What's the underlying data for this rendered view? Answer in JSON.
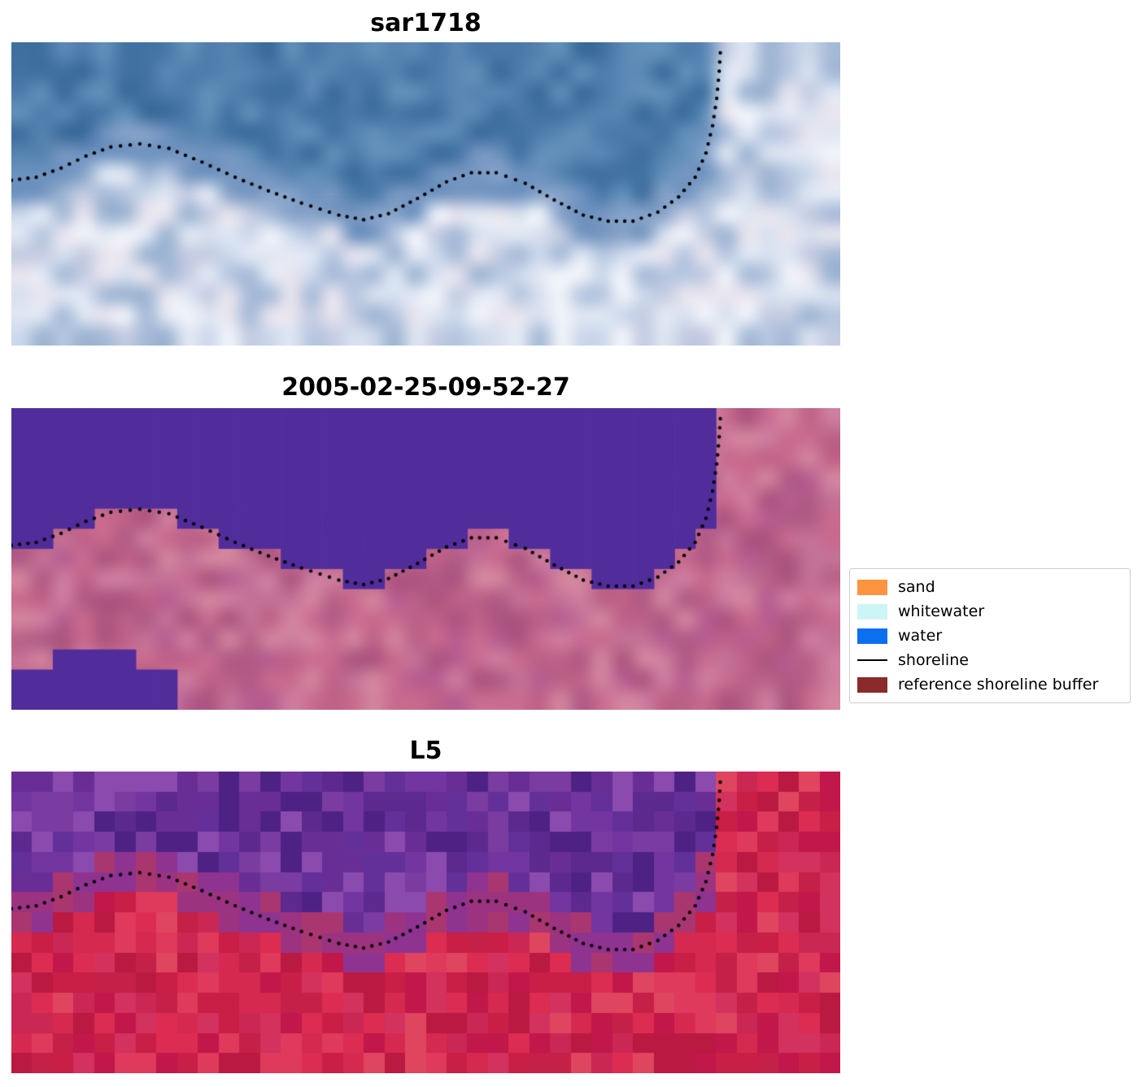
{
  "chart_data": {
    "type": "heatmap",
    "description": "Three co-registered coastal image panels with a detected shoreline drawn as a black dotted line; classification legend at right.",
    "panels": [
      {
        "title": "sar1718",
        "kind": "rgb-satellite",
        "seed": 7,
        "smooth": true,
        "water_colors": [
          "#3f6f9f",
          "#4a79a8",
          "#5684b1",
          "#4272a2",
          "#6290ba",
          "#4e7dac",
          "#3a6a9a",
          "#5b88b5"
        ],
        "mid_colors": [
          "#7697c1",
          "#86a3c9",
          "#6d92bf"
        ],
        "land_colors": [
          "#b6c6e0",
          "#ccd8eb",
          "#e4eaf5",
          "#a6bad8",
          "#f1f4fa",
          "#d8e1ef",
          "#c4cce2",
          "#e9e5ef",
          "#9db4d2",
          "#dfe7f3"
        ]
      },
      {
        "title": "2005-02-25-09-52-27",
        "kind": "classified",
        "seed": 13,
        "smooth": true,
        "water_color": "#512d9c",
        "land_colors": [
          "#bf6187",
          "#b75d90",
          "#c96c91",
          "#ac547f",
          "#c37297",
          "#ce7e9f",
          "#ba6187",
          "#d3869e",
          "#c86a8d",
          "#b05a85"
        ],
        "blob": [
          [
            0.0,
            0.045,
            0.87
          ],
          [
            0.045,
            0.15,
            0.775
          ],
          [
            0.15,
            0.205,
            0.87
          ]
        ]
      },
      {
        "title": "L5",
        "kind": "false-color",
        "seed": 29,
        "smooth": false,
        "water_colors": [
          "#7a3ca1",
          "#692e96",
          "#8b4aad",
          "#5c298f",
          "#4e2285",
          "#7335a0",
          "#63309a"
        ],
        "mid_colors": [
          "#9c3380",
          "#aa3670",
          "#8f3390"
        ],
        "land_colors": [
          "#d62950",
          "#c91e46",
          "#df395c",
          "#ba1941",
          "#d3315e",
          "#c1174a",
          "#dc2c52",
          "#ca2755",
          "#e0455f",
          "#c52048"
        ]
      }
    ],
    "shoreline": {
      "style": "dotted",
      "color": "#000000",
      "points": [
        [
          0.0,
          0.455
        ],
        [
          0.03,
          0.445
        ],
        [
          0.06,
          0.415
        ],
        [
          0.09,
          0.375
        ],
        [
          0.12,
          0.345
        ],
        [
          0.155,
          0.335
        ],
        [
          0.19,
          0.35
        ],
        [
          0.23,
          0.395
        ],
        [
          0.27,
          0.445
        ],
        [
          0.31,
          0.49
        ],
        [
          0.35,
          0.53
        ],
        [
          0.395,
          0.57
        ],
        [
          0.425,
          0.585
        ],
        [
          0.455,
          0.565
        ],
        [
          0.49,
          0.515
        ],
        [
          0.525,
          0.46
        ],
        [
          0.555,
          0.43
        ],
        [
          0.585,
          0.43
        ],
        [
          0.62,
          0.465
        ],
        [
          0.655,
          0.52
        ],
        [
          0.69,
          0.57
        ],
        [
          0.72,
          0.59
        ],
        [
          0.75,
          0.59
        ],
        [
          0.78,
          0.56
        ],
        [
          0.805,
          0.51
        ],
        [
          0.825,
          0.445
        ],
        [
          0.838,
          0.365
        ],
        [
          0.846,
          0.275
        ],
        [
          0.851,
          0.185
        ],
        [
          0.854,
          0.095
        ],
        [
          0.856,
          0.005
        ]
      ]
    },
    "legend": {
      "position": "center-right",
      "items": [
        {
          "label": "sand",
          "color": "#ff9440",
          "swatch": "patch"
        },
        {
          "label": "whitewater",
          "color": "#ccf6f6",
          "swatch": "patch"
        },
        {
          "label": "water",
          "color": "#0c6ff0",
          "swatch": "patch"
        },
        {
          "label": "shoreline",
          "color": "#000000",
          "swatch": "line"
        },
        {
          "label": "reference shoreline buffer",
          "color": "#8b2a2a",
          "swatch": "patch"
        }
      ]
    }
  }
}
